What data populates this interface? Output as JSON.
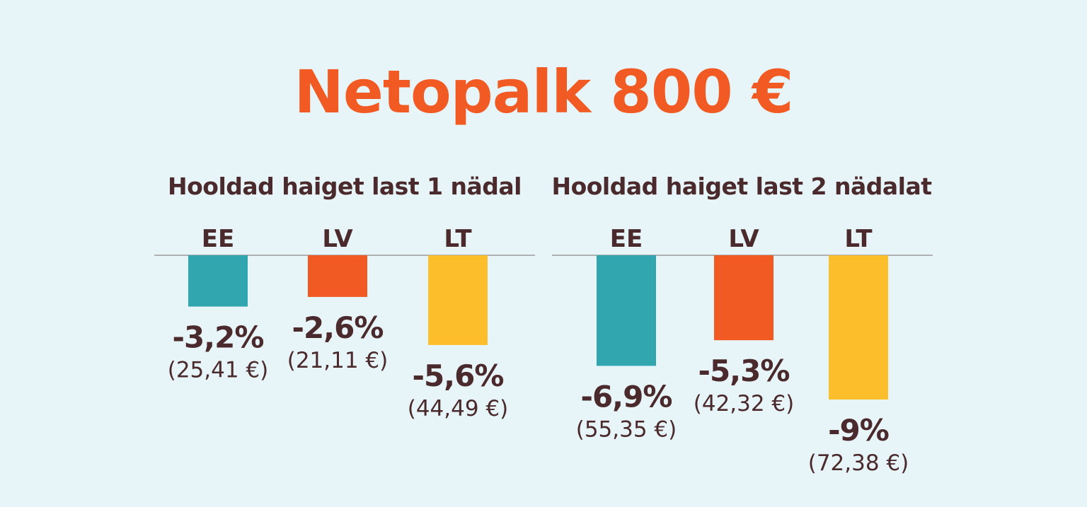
{
  "title": "Netopalk 800 €",
  "colors": {
    "background": "#e8f5f8",
    "title": "#f15a22",
    "text": "#4a2a2c",
    "baseline": "#9a9a9a",
    "EE": "#31a6ae",
    "LV": "#f15a22",
    "LT": "#fdbe2c"
  },
  "chart_data": [
    {
      "type": "bar",
      "title": "Hooldad haiget last 1 nädal",
      "categories": [
        "EE",
        "LV",
        "LT"
      ],
      "values": [
        -3.2,
        -2.6,
        -5.6
      ],
      "value_labels": [
        "-3,2%",
        "-2,6%",
        "-5,6%"
      ],
      "amount_labels": [
        "(25,41 €)",
        "(21,11 €)",
        "(44,49 €)"
      ],
      "ylim": [
        -9,
        0
      ],
      "grid": false,
      "xlabel": "",
      "ylabel": ""
    },
    {
      "type": "bar",
      "title": "Hooldad haiget last 2 nädalat",
      "categories": [
        "EE",
        "LV",
        "LT"
      ],
      "values": [
        -6.9,
        -5.3,
        -9
      ],
      "value_labels": [
        "-6,9%",
        "-5,3%",
        "-9%"
      ],
      "amount_labels": [
        "(55,35 €)",
        "(42,32 €)",
        "(72,38 €)"
      ],
      "ylim": [
        -9,
        0
      ],
      "grid": false,
      "xlabel": "",
      "ylabel": ""
    }
  ]
}
